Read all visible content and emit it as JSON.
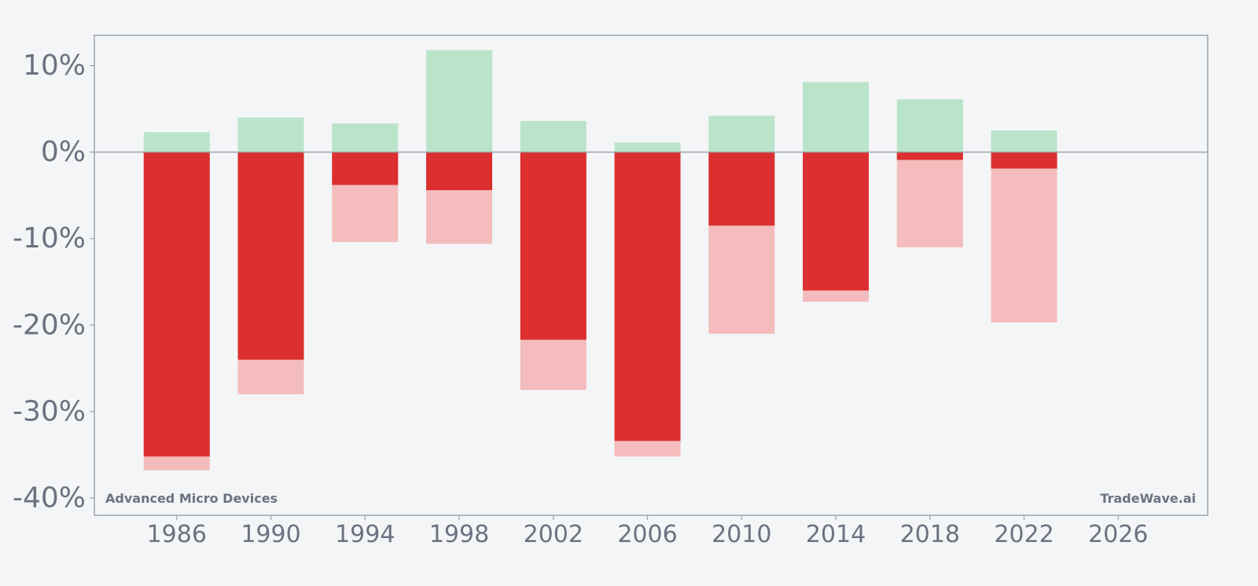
{
  "chart_data": {
    "type": "bar",
    "title": "",
    "xlabel": "",
    "ylabel": "",
    "categories": [
      1986,
      1990,
      1994,
      1998,
      2002,
      2006,
      2010,
      2014,
      2018,
      2022
    ],
    "series": [
      {
        "values": [
          2.3,
          4.0,
          3.3,
          11.8,
          3.6,
          1.1,
          4.2,
          8.1,
          6.1,
          2.5
        ]
      },
      {
        "values": [
          -35.2,
          -24.0,
          -3.8,
          -4.4,
          -21.7,
          -33.4,
          -8.5,
          -16.0,
          -0.9,
          -1.9
        ]
      },
      {
        "values": [
          -36.8,
          -28.0,
          -10.4,
          -10.6,
          -27.5,
          -35.2,
          -21.0,
          -17.3,
          -11.0,
          -19.7
        ]
      }
    ],
    "ylim": [
      -42,
      13.5
    ],
    "xlim": [
      1982.5,
      2029.8
    ],
    "yticks": [
      10,
      0,
      -10,
      -20,
      -30,
      -40
    ],
    "ytick_labels": [
      "10%",
      "0%",
      "-10%",
      "-20%",
      "-30%",
      "-40%"
    ],
    "xticks": [
      1986,
      1990,
      1994,
      1998,
      2002,
      2006,
      2010,
      2014,
      2018,
      2022,
      2026
    ],
    "xtick_labels": [
      "1986",
      "1990",
      "1994",
      "1998",
      "2002",
      "2006",
      "2010",
      "2014",
      "2018",
      "2022",
      "2026"
    ],
    "grid": false,
    "legend": "none",
    "colors": {
      "positive": "#b9e4c9",
      "drawdown": "#dc2f2f",
      "range": "#f4bcbc",
      "axis": "#9ca3af",
      "text": "#6b7280",
      "background": "#f4f5f7"
    }
  },
  "annotations": {
    "company": "Advanced Micro Devices",
    "brand": "TradeWave.ai"
  }
}
